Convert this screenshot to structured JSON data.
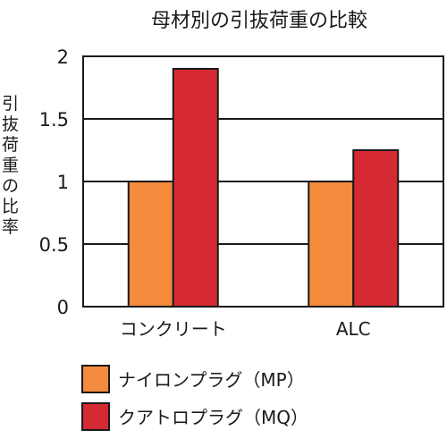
{
  "chart_data": {
    "type": "bar",
    "title": "母材別の引抜荷重の比較",
    "ylabel": "引抜荷重の比率",
    "xlabel": "",
    "categories": [
      "コンクリート",
      "ALC"
    ],
    "series": [
      {
        "name": "ナイロンプラグ（MP）",
        "values": [
          1.0,
          1.0
        ],
        "color": "#f38a3c"
      },
      {
        "name": "クアトロプラグ（MQ）",
        "values": [
          1.9,
          1.25
        ],
        "color": "#d52a33"
      }
    ],
    "ylim": [
      0,
      2
    ],
    "yticks": [
      "0",
      "0.5",
      "1",
      "1.5",
      "2"
    ],
    "grid": true,
    "legend_position": "bottom-left"
  }
}
